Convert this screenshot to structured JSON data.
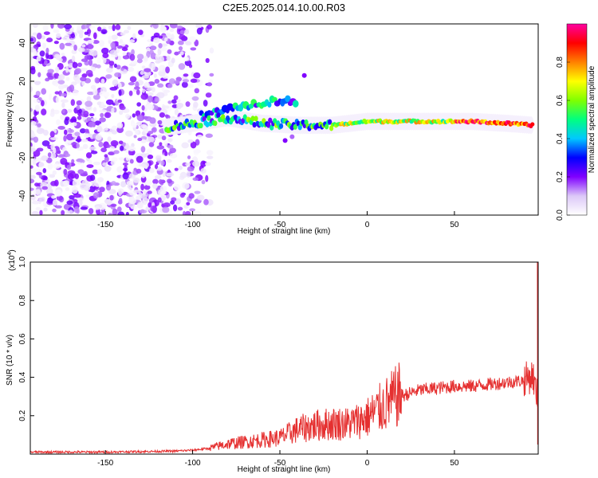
{
  "chart_data": [
    {
      "type": "heatmap",
      "title": "C2E5.2025.014.10.00.R03",
      "xlabel": "Height of straight line (km)",
      "ylabel": "Frequency (Hz)",
      "xlim": [
        -193,
        98
      ],
      "ylim": [
        -50,
        50
      ],
      "x_ticks": [
        -150,
        -100,
        -50,
        0,
        50
      ],
      "y_ticks": [
        -40,
        -20,
        0,
        20,
        40
      ],
      "colorbar": {
        "label": "Normalized spectral amplitude",
        "range": [
          0.0,
          1.0
        ],
        "ticks": [
          "0.0",
          "0.2",
          "0.4",
          "0.6",
          "0.8"
        ],
        "colormap": [
          "#ffffff",
          "#dcc8f8",
          "#8000ff",
          "#0000ff",
          "#00c8ff",
          "#00ff80",
          "#80ff00",
          "#ffff00",
          "#ff8000",
          "#ff0000",
          "#ff00a0"
        ]
      },
      "features": {
        "noise_region_x": [
          -193,
          -88
        ],
        "signal_ridge": [
          {
            "x": -115,
            "y": -4
          },
          {
            "x": -100,
            "y": -2
          },
          {
            "x": -80,
            "y": 1
          },
          {
            "x": -60,
            "y": -2
          },
          {
            "x": -40,
            "y": -3
          },
          {
            "x": -20,
            "y": -3
          },
          {
            "x": 0,
            "y": -1
          },
          {
            "x": 20,
            "y": -1
          },
          {
            "x": 40,
            "y": -1
          },
          {
            "x": 60,
            "y": -1
          },
          {
            "x": 80,
            "y": -2
          },
          {
            "x": 95,
            "y": -3
          }
        ],
        "upper_branch": [
          {
            "x": -95,
            "y": 2
          },
          {
            "x": -80,
            "y": 5
          },
          {
            "x": -65,
            "y": 8
          },
          {
            "x": -50,
            "y": 10
          },
          {
            "x": -40,
            "y": 9
          }
        ]
      }
    },
    {
      "type": "line",
      "xlabel": "Height of straight line (km)",
      "ylabel": "SNR (10 * v/v)",
      "y_multiplier": "(x10",
      "y_multiplier_exp": "4",
      "y_multiplier_close": ")",
      "xlim": [
        -193,
        98
      ],
      "ylim": [
        0,
        1.0
      ],
      "x_ticks": [
        -150,
        -100,
        -50,
        0,
        50
      ],
      "y_ticks": [
        "0.2",
        "0.4",
        "0.6",
        "0.8",
        "1.0"
      ],
      "line_color": "#e53030",
      "series": [
        {
          "x": [
            -193,
            -150,
            -110,
            -100,
            -90,
            -80,
            -70,
            -60,
            -50,
            -40,
            -30,
            -20,
            -10,
            0,
            10,
            20,
            30,
            40,
            50,
            60,
            70,
            80,
            90,
            95,
            97
          ],
          "y": [
            0.01,
            0.01,
            0.015,
            0.02,
            0.03,
            0.05,
            0.06,
            0.07,
            0.08,
            0.12,
            0.14,
            0.15,
            0.15,
            0.18,
            0.24,
            0.3,
            0.33,
            0.34,
            0.35,
            0.35,
            0.36,
            0.37,
            0.38,
            0.4,
            0.3
          ]
        }
      ]
    }
  ]
}
